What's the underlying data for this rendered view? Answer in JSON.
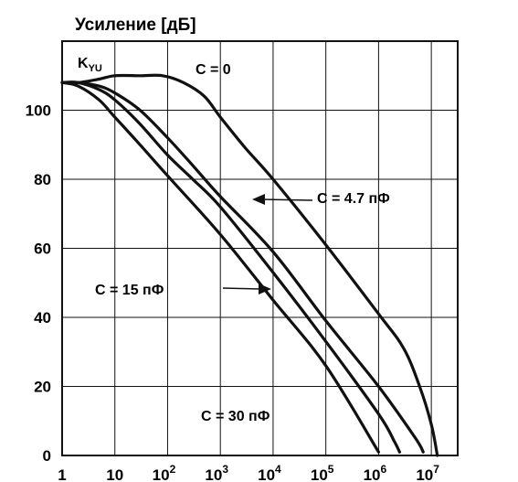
{
  "chart_data": {
    "type": "line",
    "title": "Усиление [дБ]",
    "ylabel": "Усиление [дБ]",
    "xlabel": "",
    "x_scale": "log",
    "xlim": [
      1,
      31622777
    ],
    "ylim": [
      0,
      120
    ],
    "grid": true,
    "x_ticks": [
      {
        "value": 1,
        "base": "1",
        "exp": ""
      },
      {
        "value": 10,
        "base": "10",
        "exp": ""
      },
      {
        "value": 100,
        "base": "10",
        "exp": "2"
      },
      {
        "value": 1000,
        "base": "10",
        "exp": "3"
      },
      {
        "value": 10000,
        "base": "10",
        "exp": "4"
      },
      {
        "value": 100000,
        "base": "10",
        "exp": "5"
      },
      {
        "value": 1000000,
        "base": "10",
        "exp": "6"
      },
      {
        "value": 10000000,
        "base": "10",
        "exp": "7"
      }
    ],
    "y_ticks": [
      0,
      20,
      40,
      60,
      80,
      100
    ],
    "curve_label": {
      "main": "K",
      "sub": "YU"
    },
    "series": [
      {
        "name": "C = 0",
        "points": [
          [
            1,
            108
          ],
          [
            2,
            108
          ],
          [
            5,
            109
          ],
          [
            10,
            110
          ],
          [
            30,
            110
          ],
          [
            80,
            110
          ],
          [
            200,
            108
          ],
          [
            500,
            104
          ],
          [
            1000,
            98
          ],
          [
            3000,
            89
          ],
          [
            10000,
            80
          ],
          [
            100000,
            61
          ],
          [
            1000000,
            41
          ],
          [
            3000000,
            31
          ],
          [
            6000000,
            20
          ],
          [
            10000000,
            9
          ],
          [
            13000000,
            0
          ]
        ]
      },
      {
        "name": "C = 4.7 пФ",
        "points": [
          [
            1,
            108
          ],
          [
            2,
            108
          ],
          [
            5,
            107
          ],
          [
            10,
            105
          ],
          [
            30,
            100
          ],
          [
            100,
            92
          ],
          [
            300,
            84
          ],
          [
            1000,
            75
          ],
          [
            10000,
            59
          ],
          [
            100000,
            39
          ],
          [
            1000000,
            20
          ],
          [
            5000000,
            5
          ],
          [
            7000000,
            1
          ]
        ]
      },
      {
        "name": "C = 15 пФ",
        "points": [
          [
            1,
            108
          ],
          [
            2,
            108
          ],
          [
            5,
            106
          ],
          [
            10,
            103
          ],
          [
            30,
            96
          ],
          [
            100,
            87
          ],
          [
            300,
            80
          ],
          [
            1000,
            72
          ],
          [
            10000,
            53
          ],
          [
            100000,
            33
          ],
          [
            1000000,
            12
          ],
          [
            2000000,
            4
          ],
          [
            2500000,
            1
          ]
        ]
      },
      {
        "name": "C = 30 пФ",
        "points": [
          [
            1,
            108
          ],
          [
            2,
            107
          ],
          [
            5,
            103
          ],
          [
            10,
            98
          ],
          [
            30,
            90
          ],
          [
            100,
            81
          ],
          [
            1000,
            64
          ],
          [
            10000,
            45
          ],
          [
            100000,
            26
          ],
          [
            1000000,
            1
          ]
        ]
      }
    ],
    "annotations": [
      {
        "text": "C = 0"
      },
      {
        "text": "C = 4.7 пФ"
      },
      {
        "text": "C = 15 пФ"
      },
      {
        "text": "C = 30 пФ"
      }
    ]
  }
}
